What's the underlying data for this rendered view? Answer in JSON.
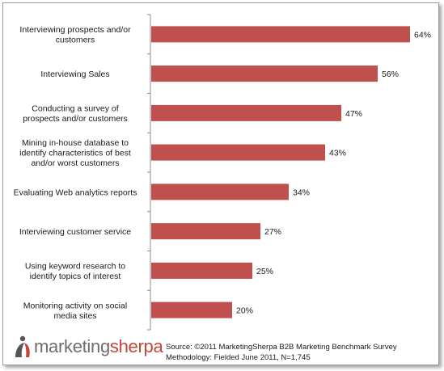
{
  "chart_data": {
    "type": "bar",
    "orientation": "horizontal",
    "categories": [
      [
        "Interviewing prospects and/or",
        "customers"
      ],
      [
        "Interviewing Sales"
      ],
      [
        "Conducting a survey of",
        "prospects and/or customers"
      ],
      [
        "Mining in-house database to",
        "identify characteristics of best",
        "and/or worst customers"
      ],
      [
        "Evaluating Web analytics reports"
      ],
      [
        "Interviewing customer service"
      ],
      [
        "Using keyword research to",
        "identify topics of interest"
      ],
      [
        "Monitoring activity on social",
        "media sites"
      ]
    ],
    "values": [
      64,
      56,
      47,
      43,
      34,
      27,
      25,
      20
    ],
    "value_labels": [
      "64%",
      "56%",
      "47%",
      "43%",
      "34%",
      "27%",
      "25%",
      "20%"
    ],
    "xlim": [
      0,
      70
    ],
    "bar_color": "#c0504d",
    "axis_color": "#8c8c8c",
    "grid": false,
    "legend": "none"
  },
  "branding": {
    "logo_part_1": "marketing",
    "logo_part_2": "sherpa",
    "logo_color_gray": "#6e6e6e",
    "logo_color_red": "#c2473b"
  },
  "source": {
    "line1": "Source: ©2011 MarketingSherpa B2B Marketing Benchmark Survey",
    "line2": "Methodology: Fielded June 2011, N=1,745"
  }
}
